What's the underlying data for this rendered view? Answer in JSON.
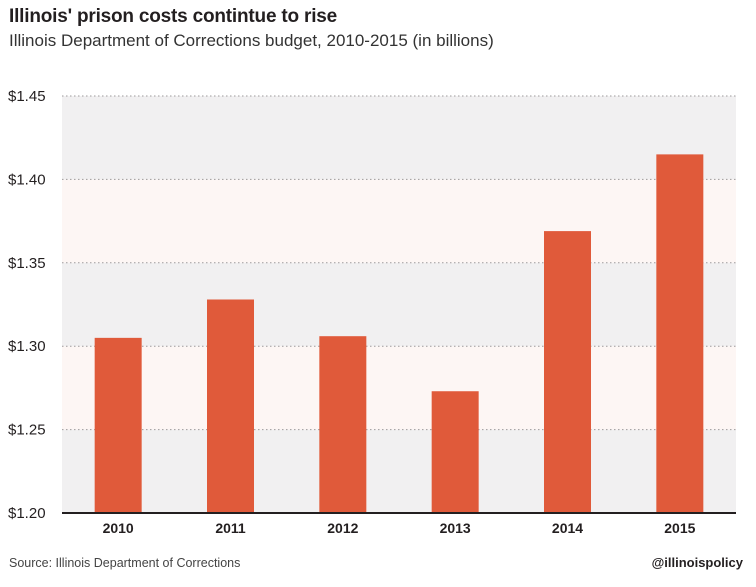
{
  "header": {
    "title": "Illinois' prison costs contintue to rise",
    "subtitle": "Illinois Department of Corrections budget, 2010-2015 (in billions)"
  },
  "footer": {
    "source": "Source: Illinois Department of Corrections",
    "handle": "@illinoispolicy"
  },
  "colors": {
    "bar": "#e05a3a",
    "band_light": "#fdf6f4",
    "band_dark": "#f1f0f1",
    "grid": "#9d9a9b",
    "axis": "#231f20"
  },
  "chart_data": {
    "type": "bar",
    "title": "Illinois' prison costs contintue to rise",
    "subtitle": "Illinois Department of Corrections budget, 2010-2015 (in billions)",
    "categories": [
      "2010",
      "2011",
      "2012",
      "2013",
      "2014",
      "2015"
    ],
    "values": [
      1.305,
      1.328,
      1.306,
      1.273,
      1.369,
      1.415
    ],
    "ylim": [
      1.2,
      1.45
    ],
    "yticks": [
      1.2,
      1.25,
      1.3,
      1.35,
      1.4,
      1.45
    ],
    "ytick_labels": [
      "$1.20",
      "$1.25",
      "$1.30",
      "$1.35",
      "$1.40",
      "$1.45"
    ],
    "xlabel": "",
    "ylabel": "",
    "grid": true,
    "legend": false
  }
}
